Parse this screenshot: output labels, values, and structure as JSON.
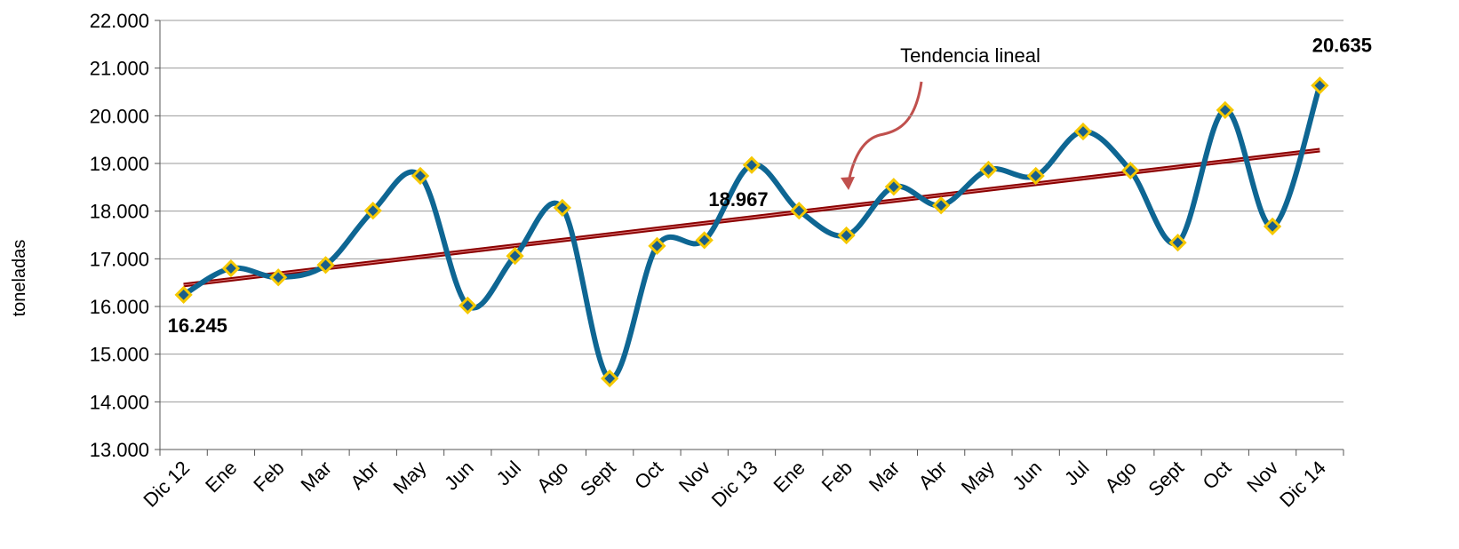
{
  "chart_data": {
    "type": "line",
    "y_label": "toneladas",
    "categories": [
      "Dic 12",
      "Ene",
      "Feb",
      "Mar",
      "Abr",
      "May",
      "Jun",
      "Jul",
      "Ago",
      "Sept",
      "Oct",
      "Nov",
      "Dic 13",
      "Ene",
      "Feb",
      "Mar",
      "Abr",
      "May",
      "Jun",
      "Jul",
      "Ago",
      "Sept",
      "Oct",
      "Nov",
      "Dic 14"
    ],
    "series": [
      {
        "color": "#0e6693",
        "marker_fill": "#1a5f8a",
        "marker_edge": "#f5c800",
        "values": [
          16245,
          16800,
          16610,
          16870,
          18010,
          18740,
          16020,
          17060,
          18070,
          14490,
          17270,
          17390,
          18967,
          18010,
          17490,
          18510,
          18120,
          18870,
          18740,
          19670,
          18850,
          17340,
          20120,
          17680,
          20635
        ],
        "value_labels": [
          "16.245",
          null,
          null,
          null,
          null,
          null,
          null,
          null,
          null,
          null,
          null,
          null,
          "18.967",
          null,
          null,
          null,
          null,
          null,
          null,
          null,
          null,
          null,
          null,
          null,
          "20.635"
        ]
      }
    ],
    "trendline": {
      "label": "Tendencia lineal",
      "color": "#8b0000",
      "values": [
        16450,
        19280
      ]
    },
    "ylim": [
      13000,
      22000
    ],
    "yticks": [
      {
        "value": 13000,
        "label": "13.000"
      },
      {
        "value": 14000,
        "label": "14.000"
      },
      {
        "value": 15000,
        "label": "15.000"
      },
      {
        "value": 16000,
        "label": "16.000"
      },
      {
        "value": 17000,
        "label": "17.000"
      },
      {
        "value": 18000,
        "label": "18.000"
      },
      {
        "value": 19000,
        "label": "19.000"
      },
      {
        "value": 20000,
        "label": "20.000"
      },
      {
        "value": 21000,
        "label": "21.000"
      },
      {
        "value": 22000,
        "label": "22.000"
      }
    ],
    "grid": true
  }
}
